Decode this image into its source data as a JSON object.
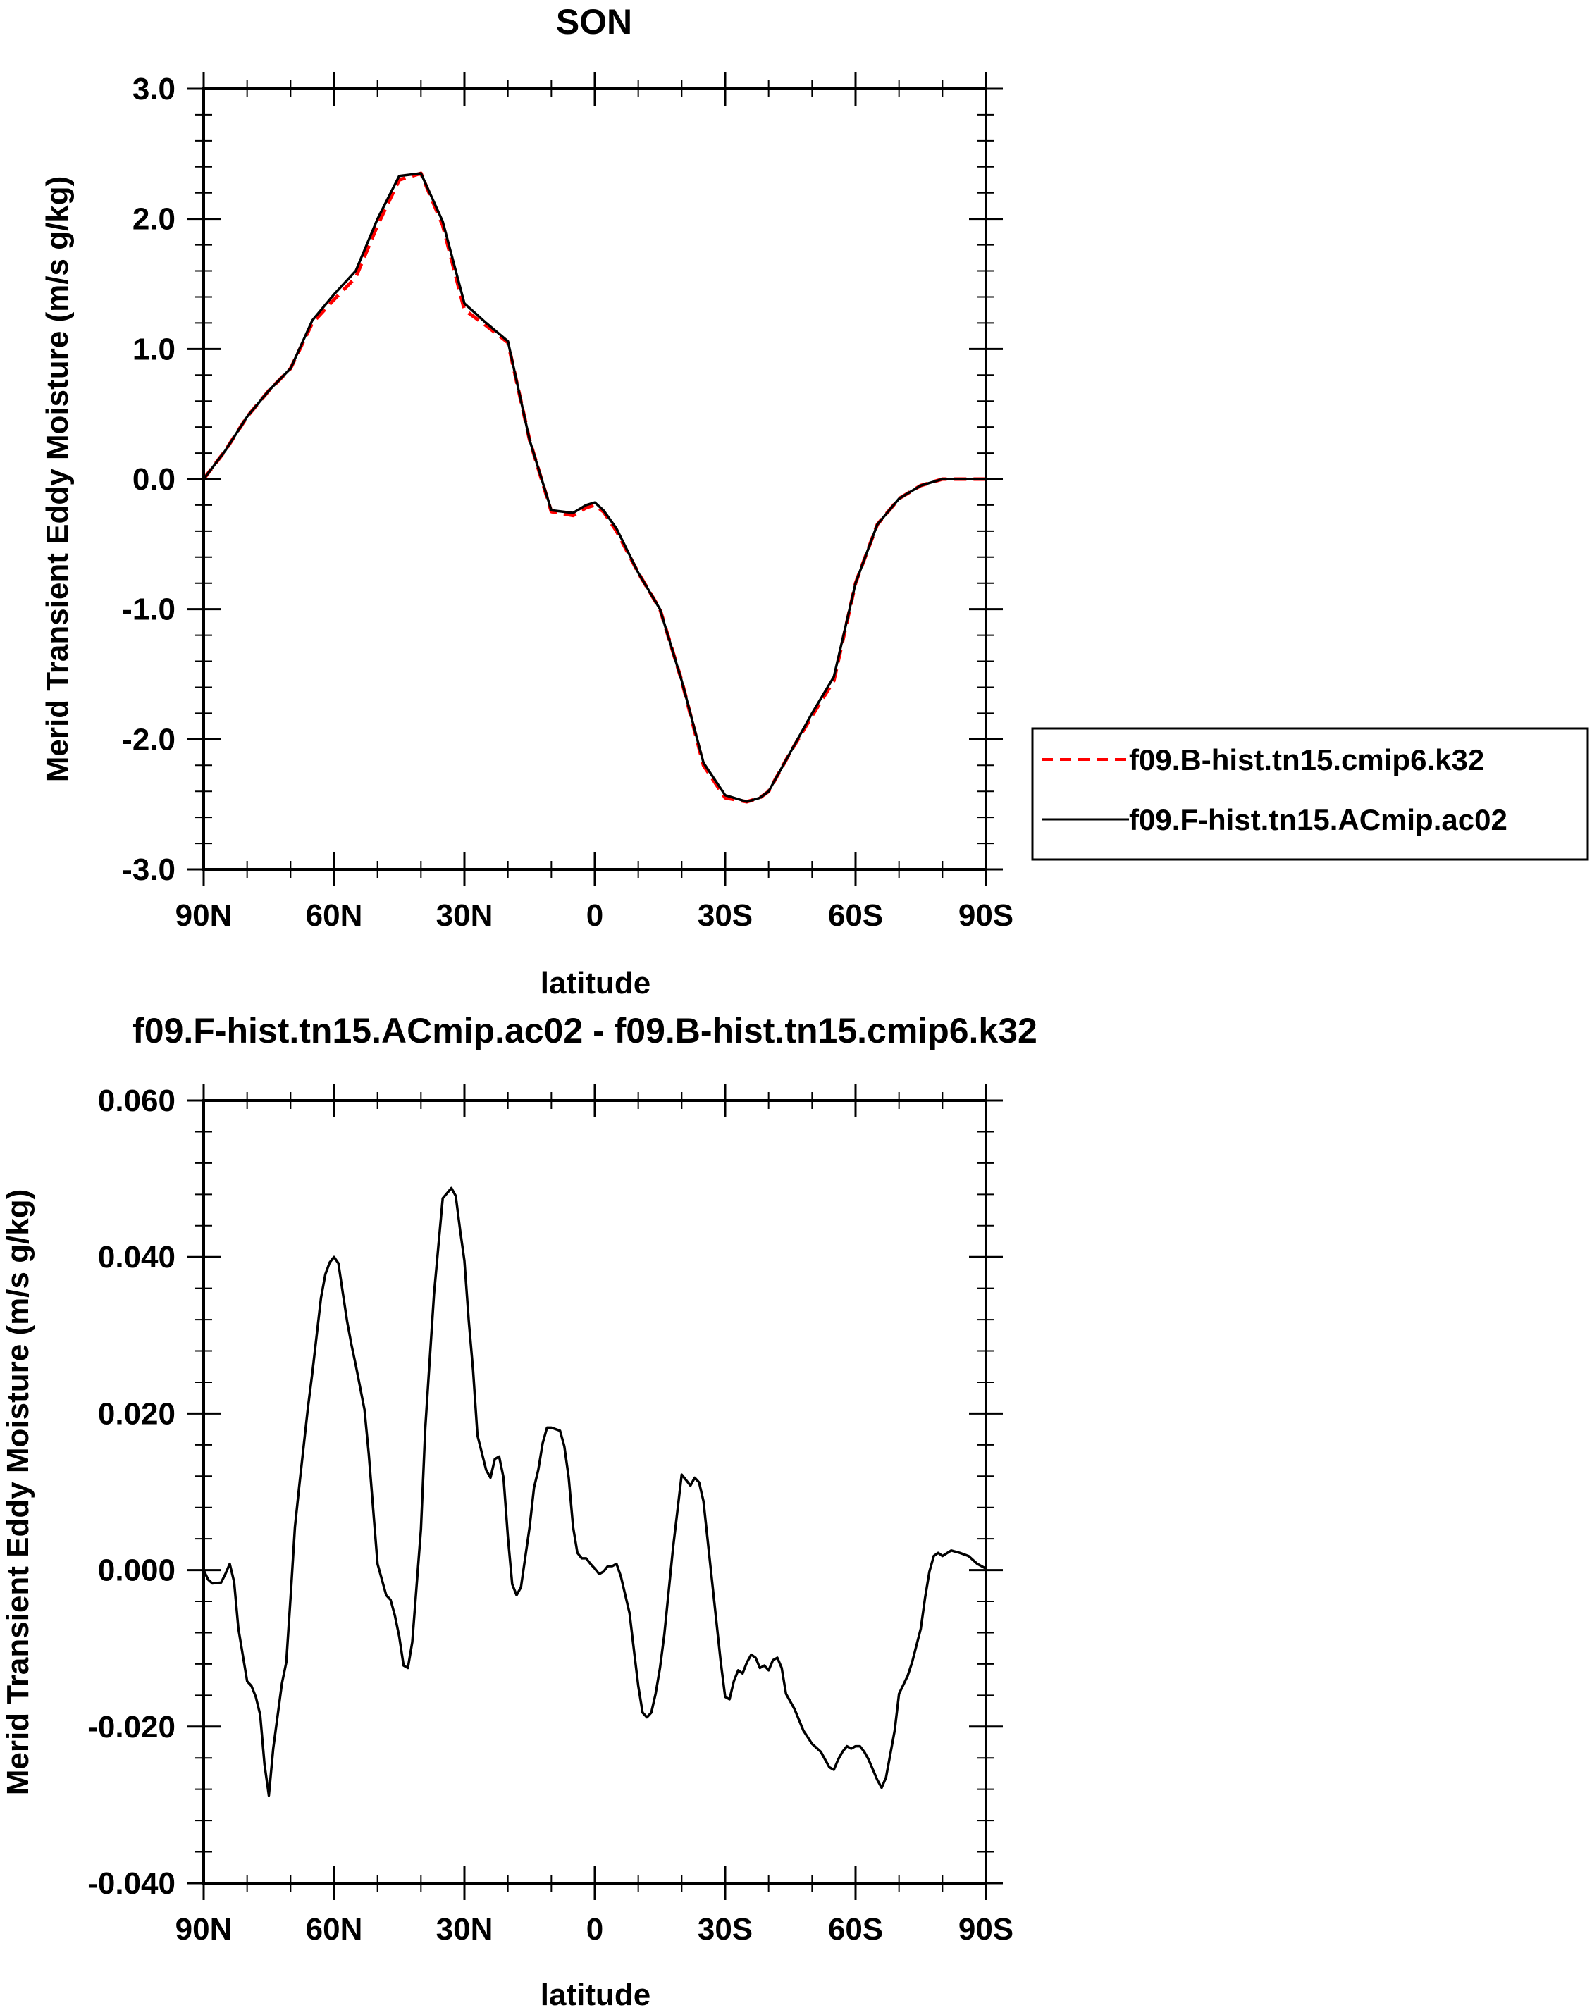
{
  "chart_data": [
    {
      "type": "line",
      "title": "SON",
      "xlabel": "latitude",
      "ylabel": "Merid Transient Eddy Moisture (m/s g/kg)",
      "xlim": [
        90,
        -90
      ],
      "ylim": [
        -3.0,
        3.0
      ],
      "xticks": [
        90,
        60,
        30,
        0,
        -30,
        -60,
        -90
      ],
      "xtick_labels": [
        "90N",
        "60N",
        "30N",
        "0",
        "30S",
        "60S",
        "90S"
      ],
      "yticks": [
        3.0,
        2.0,
        1.0,
        0.0,
        -1.0,
        -2.0,
        -3.0
      ],
      "ytick_labels": [
        "3.0",
        "2.0",
        "1.0",
        "0.0",
        "-1.0",
        "-2.0",
        "-3.0"
      ],
      "legend_position": "right",
      "series": [
        {
          "name": "f09.B-hist.tn15.cmip6.k32",
          "color": "#ff0000",
          "dash": "dashed",
          "x": [
            90,
            85,
            80,
            75,
            70,
            65,
            60,
            55,
            50,
            45,
            40,
            35,
            30,
            25,
            20,
            15,
            10,
            5,
            2,
            0,
            -2,
            -5,
            -10,
            -15,
            -20,
            -25,
            -30,
            -35,
            -38,
            -40,
            -45,
            -50,
            -55,
            -60,
            -65,
            -70,
            -75,
            -80,
            -85,
            -90
          ],
          "y": [
            0.0,
            0.22,
            0.48,
            0.68,
            0.85,
            1.2,
            1.38,
            1.55,
            1.95,
            2.3,
            2.35,
            1.95,
            1.3,
            1.18,
            1.05,
            0.3,
            -0.25,
            -0.28,
            -0.22,
            -0.2,
            -0.25,
            -0.4,
            -0.72,
            -1.0,
            -1.55,
            -2.2,
            -2.45,
            -2.48,
            -2.45,
            -2.4,
            -2.1,
            -1.82,
            -1.55,
            -0.8,
            -0.35,
            -0.15,
            -0.05,
            0.0,
            0.0,
            0.0
          ]
        },
        {
          "name": "f09.F-hist.tn15.ACmip.ac02",
          "color": "#000000",
          "dash": "solid",
          "x": [
            90,
            85,
            80,
            75,
            70,
            65,
            60,
            55,
            50,
            45,
            40,
            35,
            30,
            25,
            20,
            15,
            10,
            5,
            2,
            0,
            -2,
            -5,
            -10,
            -15,
            -20,
            -25,
            -30,
            -35,
            -38,
            -40,
            -45,
            -50,
            -55,
            -60,
            -65,
            -70,
            -75,
            -80,
            -85,
            -90
          ],
          "y": [
            0.0,
            0.22,
            0.48,
            0.68,
            0.85,
            1.22,
            1.42,
            1.6,
            2.0,
            2.33,
            2.35,
            1.98,
            1.35,
            1.2,
            1.06,
            0.3,
            -0.24,
            -0.26,
            -0.2,
            -0.18,
            -0.24,
            -0.38,
            -0.72,
            -1.0,
            -1.55,
            -2.18,
            -2.43,
            -2.48,
            -2.45,
            -2.4,
            -2.1,
            -1.8,
            -1.52,
            -0.8,
            -0.35,
            -0.15,
            -0.05,
            0.0,
            0.0,
            0.0
          ]
        }
      ]
    },
    {
      "type": "line",
      "title": "f09.F-hist.tn15.ACmip.ac02 - f09.B-hist.tn15.cmip6.k32",
      "xlabel": "latitude",
      "ylabel": "Merid Transient Eddy Moisture (m/s g/kg)",
      "xlim": [
        90,
        -90
      ],
      "ylim": [
        -0.04,
        0.06
      ],
      "xticks": [
        90,
        60,
        30,
        0,
        -30,
        -60,
        -90
      ],
      "xtick_labels": [
        "90N",
        "60N",
        "30N",
        "0",
        "30S",
        "60S",
        "90S"
      ],
      "yticks": [
        0.06,
        0.04,
        0.02,
        0.0,
        -0.02,
        -0.04
      ],
      "ytick_labels": [
        "0.060",
        "0.040",
        "0.020",
        "0.000",
        "-0.020",
        "-0.040"
      ],
      "series": [
        {
          "name": "f09.F-hist.tn15.ACmip.ac02 - f09.B-hist.tn15.cmip6.k32",
          "color": "#000000",
          "dash": "solid",
          "x": [
            90,
            89,
            88,
            86,
            85,
            84,
            83,
            82,
            80,
            79,
            78,
            77,
            76,
            75,
            74,
            72,
            71,
            70,
            69,
            68,
            66,
            65,
            63,
            62,
            61,
            60,
            59,
            58,
            57,
            56,
            55,
            53,
            52,
            50,
            48,
            47,
            46,
            45,
            44,
            43,
            42,
            40,
            39,
            38,
            37,
            35,
            33,
            32,
            31,
            30,
            29,
            28,
            27,
            25,
            24,
            23,
            22,
            21,
            20,
            19,
            18,
            17,
            15,
            14,
            13,
            12,
            11,
            10,
            8,
            7,
            6,
            5,
            4,
            3,
            2,
            1,
            0,
            -1,
            -2,
            -3,
            -4,
            -5,
            -6,
            -8,
            -9,
            -10,
            -11,
            -12,
            -13,
            -14,
            -15,
            -16,
            -18,
            -20,
            -21,
            -22,
            -23,
            -24,
            -25,
            -27,
            -29,
            -30,
            -31,
            -32,
            -33,
            -34,
            -35,
            -36,
            -37,
            -38,
            -39,
            -40,
            -41,
            -42,
            -43,
            -44,
            -46,
            -48,
            -50,
            -52,
            -53,
            -54,
            -55,
            -56,
            -57,
            -58,
            -59,
            -60,
            -61,
            -62,
            -63,
            -64,
            -65,
            -66,
            -67,
            -69,
            -70,
            -72,
            -73,
            -75,
            -76,
            -77,
            -78,
            -79,
            -80,
            -82,
            -84,
            -86,
            -88,
            -90
          ],
          "y": [
            0.0,
            -0.0012,
            -0.0017,
            -0.0016,
            -0.0005,
            0.0008,
            -0.0015,
            -0.0075,
            -0.0142,
            -0.0148,
            -0.0162,
            -0.0185,
            -0.0248,
            -0.0288,
            -0.0228,
            -0.0145,
            -0.0118,
            -0.0035,
            0.0055,
            0.0108,
            0.0208,
            0.0252,
            0.0348,
            0.0378,
            0.0393,
            0.04,
            0.0392,
            0.0355,
            0.0318,
            0.0288,
            0.0262,
            0.0205,
            0.0148,
            0.0008,
            -0.0032,
            -0.0038,
            -0.0058,
            -0.0085,
            -0.0122,
            -0.0125,
            -0.0092,
            0.0052,
            0.0182,
            0.0268,
            0.0352,
            0.0475,
            0.0488,
            0.0478,
            0.0435,
            0.0395,
            0.0318,
            0.0255,
            0.0172,
            0.0128,
            0.0118,
            0.0142,
            0.0145,
            0.0118,
            0.0042,
            -0.0018,
            -0.0032,
            -0.0022,
            0.0055,
            0.0105,
            0.0128,
            0.0162,
            0.0182,
            0.0182,
            0.0178,
            0.0158,
            0.0118,
            0.0055,
            0.0022,
            0.0015,
            0.0015,
            0.0008,
            0.0002,
            -0.0005,
            -0.0002,
            0.0005,
            0.0005,
            0.0008,
            -0.0008,
            -0.0055,
            -0.0102,
            -0.0148,
            -0.0182,
            -0.0188,
            -0.0182,
            -0.0158,
            -0.0125,
            -0.0082,
            0.0028,
            0.0122,
            0.0115,
            0.0108,
            0.0118,
            0.0112,
            0.0088,
            -0.0015,
            -0.0118,
            -0.0162,
            -0.0165,
            -0.0142,
            -0.0128,
            -0.0132,
            -0.0118,
            -0.0108,
            -0.0112,
            -0.0125,
            -0.0122,
            -0.0128,
            -0.0115,
            -0.0112,
            -0.0125,
            -0.0158,
            -0.0178,
            -0.0205,
            -0.0222,
            -0.0232,
            -0.0242,
            -0.0252,
            -0.0255,
            -0.0242,
            -0.0232,
            -0.0225,
            -0.0228,
            -0.0225,
            -0.0225,
            -0.0232,
            -0.0242,
            -0.0255,
            -0.0268,
            -0.0278,
            -0.0265,
            -0.0205,
            -0.0158,
            -0.0135,
            -0.0118,
            -0.0075,
            -0.0035,
            -0.0002,
            0.0018,
            0.0022,
            0.0018,
            0.0025,
            0.0022,
            0.0018,
            0.0008,
            0.0002
          ]
        }
      ]
    }
  ]
}
